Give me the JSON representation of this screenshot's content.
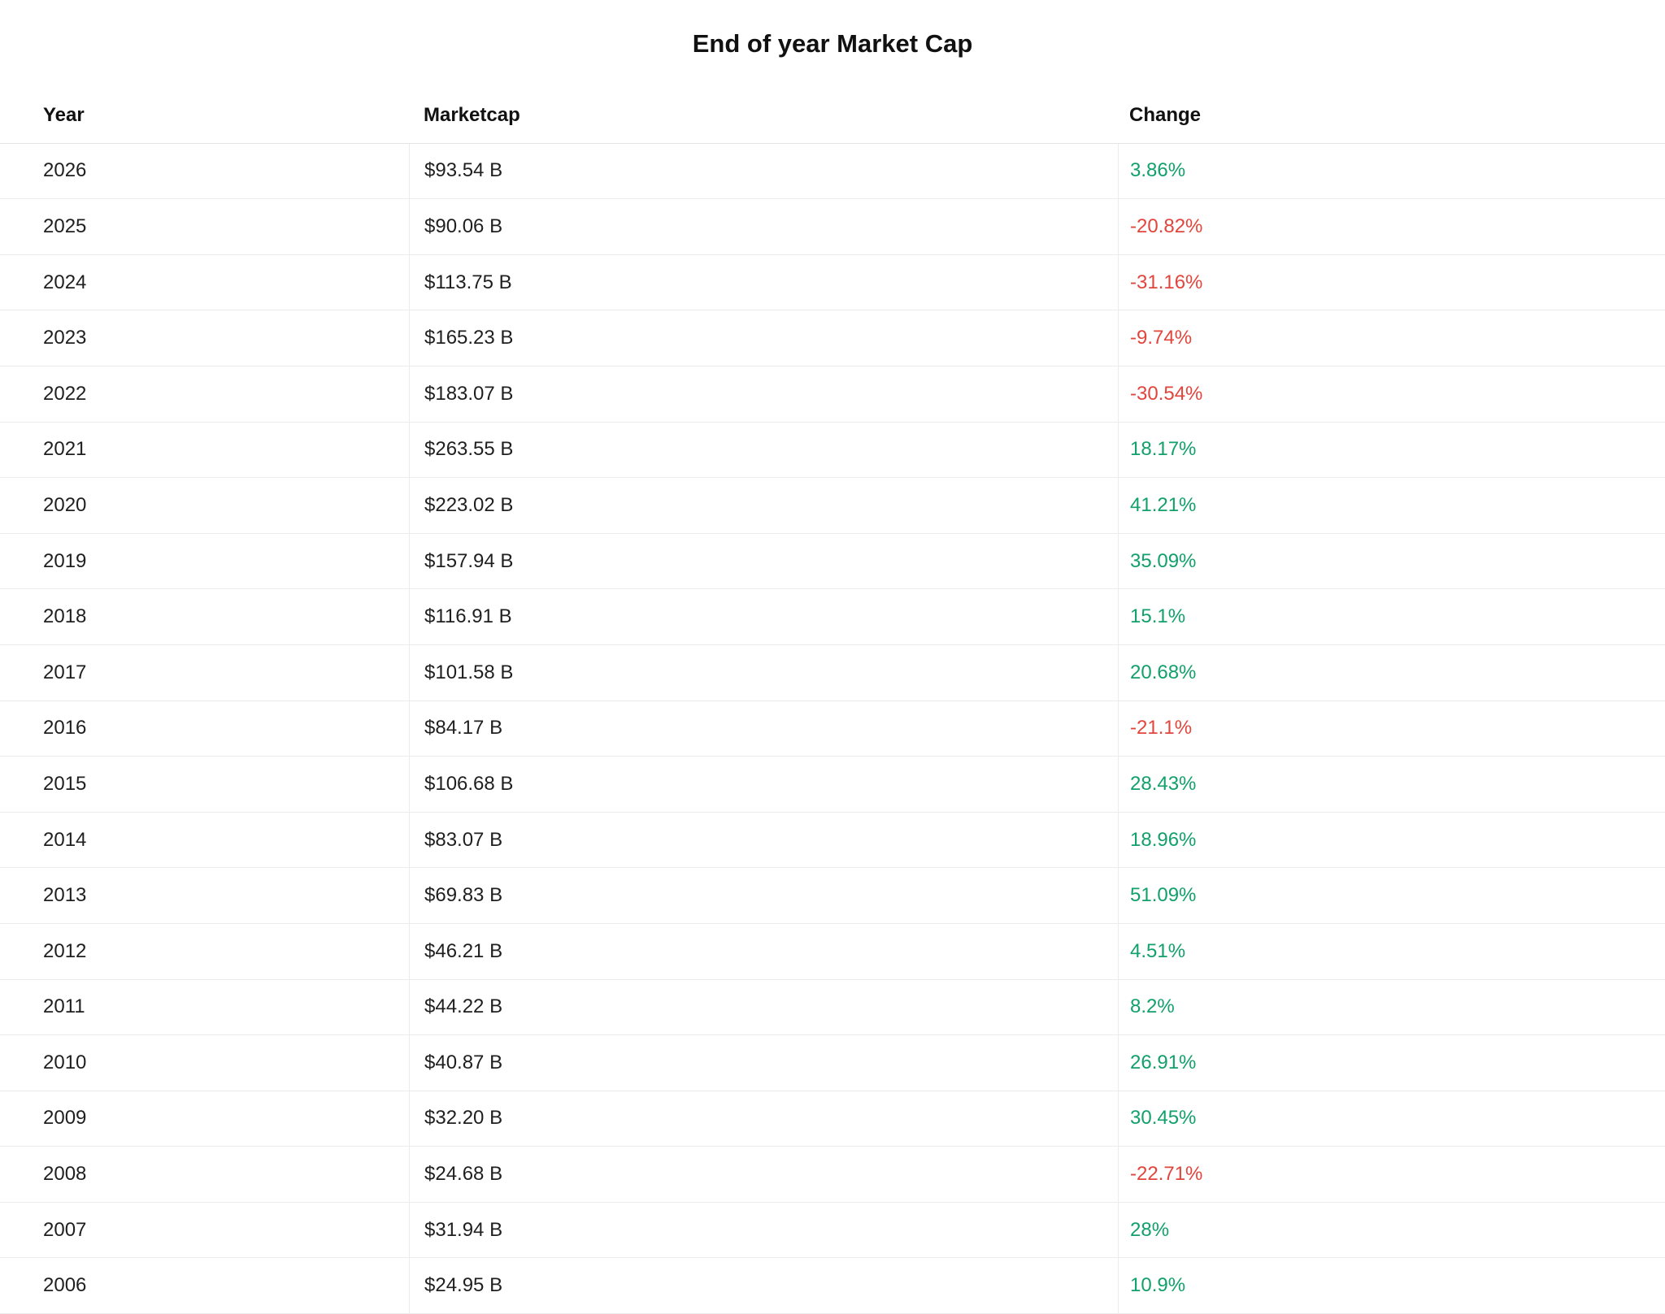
{
  "page": {
    "title": "End of year Market Cap"
  },
  "colors": {
    "positive": "#12a06b",
    "negative": "#e2453c",
    "text": "#1f1f1f",
    "border": "#ececec"
  },
  "chart_data": {
    "type": "table",
    "title": "End of year Market Cap",
    "columns": [
      "Year",
      "Marketcap",
      "Change"
    ],
    "rows": [
      [
        "2026",
        "$93.54 B",
        "3.86%"
      ],
      [
        "2025",
        "$90.06 B",
        "-20.82%"
      ],
      [
        "2024",
        "$113.75 B",
        "-31.16%"
      ],
      [
        "2023",
        "$165.23 B",
        "-9.74%"
      ],
      [
        "2022",
        "$183.07 B",
        "-30.54%"
      ],
      [
        "2021",
        "$263.55 B",
        "18.17%"
      ],
      [
        "2020",
        "$223.02 B",
        "41.21%"
      ],
      [
        "2019",
        "$157.94 B",
        "35.09%"
      ],
      [
        "2018",
        "$116.91 B",
        "15.1%"
      ],
      [
        "2017",
        "$101.58 B",
        "20.68%"
      ],
      [
        "2016",
        "$84.17 B",
        "-21.1%"
      ],
      [
        "2015",
        "$106.68 B",
        "28.43%"
      ],
      [
        "2014",
        "$83.07 B",
        "18.96%"
      ],
      [
        "2013",
        "$69.83 B",
        "51.09%"
      ],
      [
        "2012",
        "$46.21 B",
        "4.51%"
      ],
      [
        "2011",
        "$44.22 B",
        "8.2%"
      ],
      [
        "2010",
        "$40.87 B",
        "26.91%"
      ],
      [
        "2009",
        "$32.20 B",
        "30.45%"
      ],
      [
        "2008",
        "$24.68 B",
        "-22.71%"
      ],
      [
        "2007",
        "$31.94 B",
        "28%"
      ],
      [
        "2006",
        "$24.95 B",
        "10.9%"
      ]
    ]
  }
}
